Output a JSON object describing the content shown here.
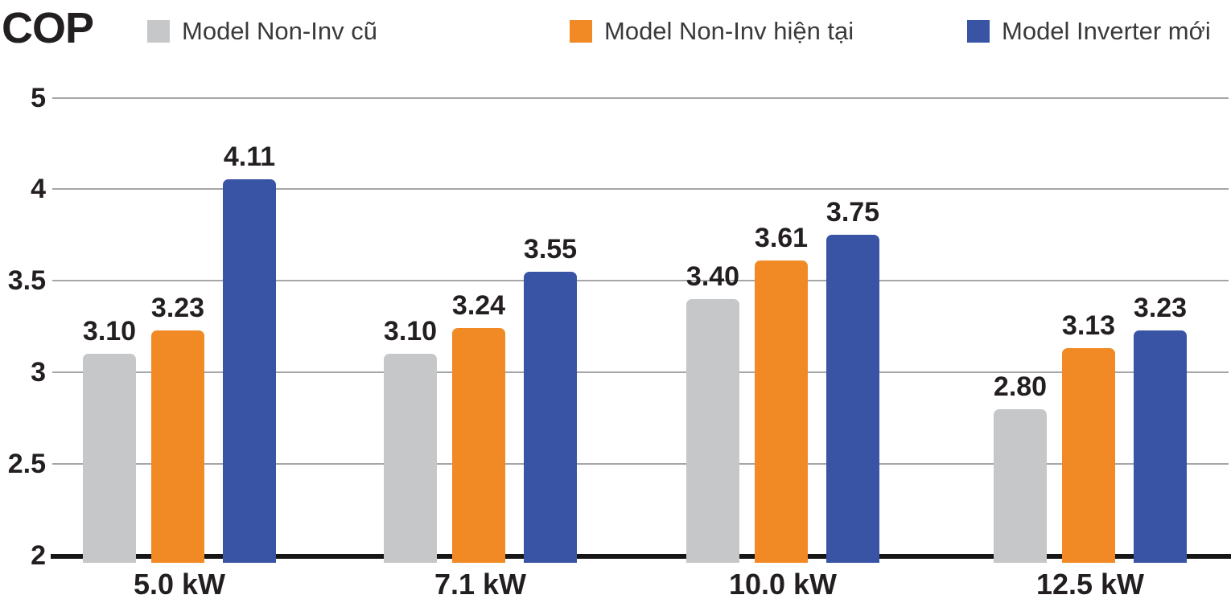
{
  "title": "COP",
  "legend": [
    {
      "label": "Model Non-Inv cũ",
      "color": "#C6C7C8"
    },
    {
      "label": "Model Non-Inv hiện tại",
      "color": "#F18A25"
    },
    {
      "label": "Model Inverter mới",
      "color": "#3954A5"
    }
  ],
  "chart_data": {
    "type": "bar",
    "title": "COP",
    "ylabel": "COP",
    "xlabel": "",
    "categories": [
      "5.0 kW",
      "7.1 kW",
      "10.0 kW",
      "12.5 kW"
    ],
    "series": [
      {
        "name": "Model Non-Inv cũ",
        "color": "#C6C7C8",
        "values": [
          3.1,
          3.1,
          3.4,
          2.8
        ]
      },
      {
        "name": "Model Non-Inv hiện tại",
        "color": "#F18A25",
        "values": [
          3.23,
          3.24,
          3.61,
          3.13
        ]
      },
      {
        "name": "Model Inverter mới",
        "color": "#3954A5",
        "values": [
          4.11,
          3.55,
          3.75,
          3.23
        ]
      }
    ],
    "y_ticks": [
      5,
      4,
      3.5,
      3,
      2.5,
      2
    ],
    "y_tick_labels": [
      "5",
      "4",
      "3.5",
      "3",
      "2.5",
      "2"
    ],
    "ylim": [
      2,
      5
    ],
    "grid": "horizontal",
    "legend_position": "top",
    "value_label_format": "2-decimals",
    "axis_note": "y axis has no 4.5 gridline; the 4-to-5 interval is compressed to a single gridline step"
  },
  "colors": {
    "background": "#FFFFFF",
    "gridline": "#A5A6A7",
    "axis_line": "#161616",
    "text": "#231F20",
    "legend_text": "#3A3A3C"
  }
}
